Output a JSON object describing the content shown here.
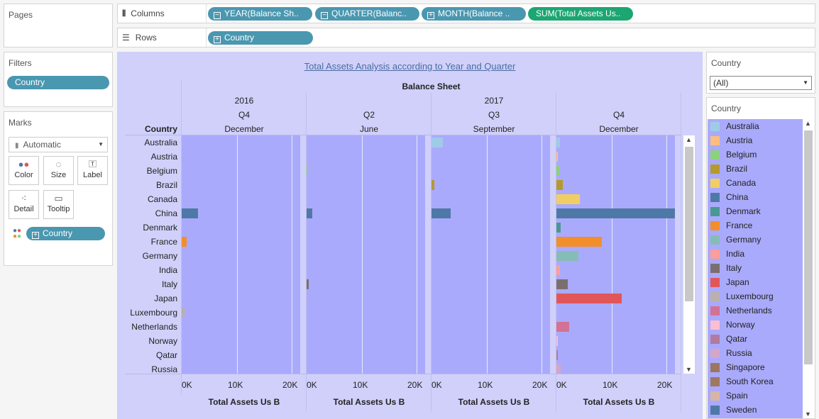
{
  "pages_card": {
    "title": "Pages"
  },
  "filters_card": {
    "title": "Filters",
    "pills": [
      "Country"
    ]
  },
  "marks_card": {
    "title": "Marks",
    "mark_type": "Automatic",
    "buttons": [
      {
        "label": "Color",
        "icon": "color-icon"
      },
      {
        "label": "Size",
        "icon": "size-icon"
      },
      {
        "label": "Label",
        "icon": "label-icon"
      },
      {
        "label": "Detail",
        "icon": "detail-icon"
      },
      {
        "label": "Tooltip",
        "icon": "tooltip-icon"
      }
    ],
    "color_pill": "Country"
  },
  "columns_shelf": {
    "label": "Columns",
    "pills": [
      "YEAR(Balance Sh..",
      "QUARTER(Balanc..",
      "MONTH(Balance ..",
      "SUM(Total Assets Us.."
    ]
  },
  "rows_shelf": {
    "label": "Rows",
    "pills": [
      "Country"
    ]
  },
  "viz": {
    "title": "Total Assets Analysis according to Year and Quarter",
    "header_title": "Balance Sheet",
    "row_header": "Country",
    "years": [
      "2016",
      "2017"
    ],
    "columns": [
      {
        "quarter": "Q4",
        "month": "December"
      },
      {
        "quarter": "Q2",
        "month": "June"
      },
      {
        "quarter": "Q3",
        "month": "September"
      },
      {
        "quarter": "Q4",
        "month": "December"
      }
    ],
    "axis_ticks": [
      "0K",
      "10K",
      "20K"
    ],
    "axis_title": "Total Assets Us B"
  },
  "chart_data": {
    "type": "bar",
    "orientation": "horizontal",
    "title": "Total Assets Analysis according to Year and Quarter",
    "xlabel": "Total Assets Us B",
    "xlim": [
      0,
      21500
    ],
    "categories": [
      "Australia",
      "Austria",
      "Belgium",
      "Brazil",
      "Canada",
      "China",
      "Denmark",
      "France",
      "Germany",
      "India",
      "Italy",
      "Japan",
      "Luxembourg",
      "Netherlands",
      "Norway",
      "Qatar",
      "Russia"
    ],
    "series": [
      {
        "name": "2016 Q4 December",
        "values": [
          0,
          0,
          0,
          0,
          0,
          3000,
          0,
          900,
          0,
          0,
          0,
          0,
          500,
          0,
          0,
          0,
          0
        ]
      },
      {
        "name": "2017 Q2 June",
        "values": [
          0,
          0,
          300,
          0,
          0,
          1000,
          0,
          0,
          0,
          0,
          400,
          0,
          0,
          0,
          0,
          0,
          0
        ]
      },
      {
        "name": "2017 Q3 September",
        "values": [
          2000,
          0,
          0,
          500,
          0,
          3500,
          0,
          0,
          0,
          0,
          0,
          0,
          0,
          0,
          0,
          0,
          0
        ]
      },
      {
        "name": "2017 Q4 December",
        "values": [
          700,
          200,
          500,
          1200,
          4300,
          21500,
          800,
          8200,
          4000,
          600,
          2000,
          11900,
          0,
          2300,
          200,
          100,
          800
        ]
      }
    ]
  },
  "country_filter": {
    "title": "Country",
    "value": "(All)"
  },
  "legend": {
    "title": "Country",
    "items": [
      {
        "name": "Australia",
        "color": "#a0cbe8"
      },
      {
        "name": "Austria",
        "color": "#ffbe7d"
      },
      {
        "name": "Belgium",
        "color": "#8cd17d"
      },
      {
        "name": "Brazil",
        "color": "#b6992d"
      },
      {
        "name": "Canada",
        "color": "#f1ce63"
      },
      {
        "name": "China",
        "color": "#4e79a7"
      },
      {
        "name": "Denmark",
        "color": "#499894"
      },
      {
        "name": "France",
        "color": "#f28e2b"
      },
      {
        "name": "Germany",
        "color": "#86bcb6"
      },
      {
        "name": "India",
        "color": "#ff9d9a"
      },
      {
        "name": "Italy",
        "color": "#79706e"
      },
      {
        "name": "Japan",
        "color": "#e15759"
      },
      {
        "name": "Luxembourg",
        "color": "#bab0ac"
      },
      {
        "name": "Netherlands",
        "color": "#d37295"
      },
      {
        "name": "Norway",
        "color": "#fabfd2"
      },
      {
        "name": "Qatar",
        "color": "#b07aa1"
      },
      {
        "name": "Russia",
        "color": "#d4a6c8"
      },
      {
        "name": "Singapore",
        "color": "#9d7660"
      },
      {
        "name": "South Korea",
        "color": "#a07860"
      },
      {
        "name": "Spain",
        "color": "#d7b5a6"
      },
      {
        "name": "Sweden",
        "color": "#4e79a7"
      }
    ]
  }
}
